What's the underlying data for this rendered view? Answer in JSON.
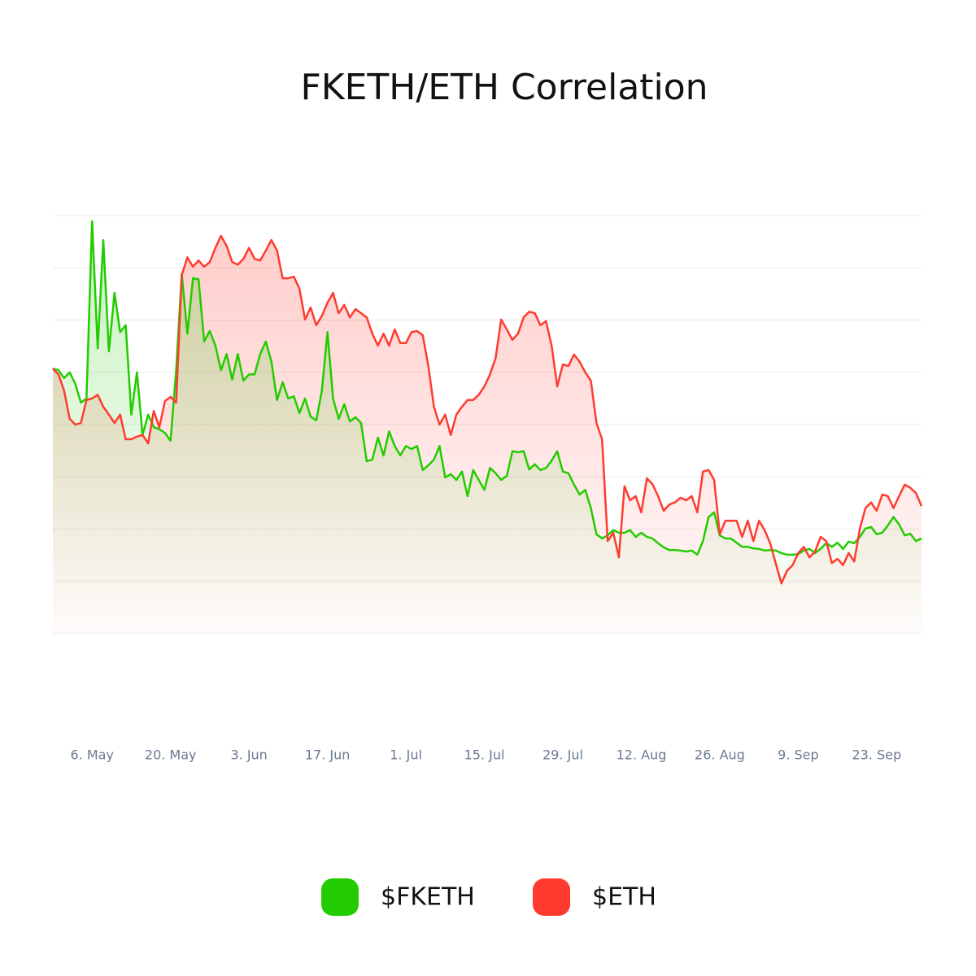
{
  "chart_data": {
    "type": "line",
    "title": "FKETH/ETH Correlation",
    "categories": [
      null,
      null,
      null,
      null,
      null,
      null,
      null,
      "6. May",
      null,
      null,
      null,
      null,
      null,
      null,
      null,
      null,
      null,
      null,
      null,
      null,
      null,
      "20. May",
      null,
      null,
      null,
      null,
      null,
      null,
      null,
      null,
      null,
      null,
      null,
      null,
      null,
      "3. Jun",
      null,
      null,
      null,
      null,
      null,
      null,
      null,
      null,
      null,
      null,
      null,
      null,
      null,
      "17. Jun",
      null,
      null,
      null,
      null,
      null,
      null,
      null,
      null,
      null,
      null,
      null,
      null,
      null,
      "1. Jul",
      null,
      null,
      null,
      null,
      null,
      null,
      null,
      null,
      null,
      null,
      null,
      null,
      null,
      "15. Jul",
      null,
      null,
      null,
      null,
      null,
      null,
      null,
      null,
      null,
      null,
      null,
      null,
      null,
      "29. Jul",
      null,
      null,
      null,
      null,
      null,
      null,
      null,
      null,
      null,
      null,
      null,
      null,
      null,
      "12. Aug",
      null,
      null,
      null,
      null,
      null,
      null,
      null,
      null,
      null,
      null,
      null,
      null,
      null,
      "26. Aug",
      null,
      null,
      null,
      null,
      null,
      null,
      null,
      null,
      null,
      null,
      null,
      null,
      null,
      "9. Sep",
      null,
      null,
      null,
      null,
      null,
      null,
      null,
      null,
      null,
      null,
      null,
      null,
      null,
      "23. Sep",
      null,
      null,
      null,
      null,
      null,
      null,
      null,
      null
    ],
    "series": [
      {
        "name": "$FKETH",
        "color": "#22cc00",
        "values": [
          5.07,
          5.04,
          4.89,
          5.0,
          4.78,
          4.42,
          4.5,
          7.89,
          5.46,
          7.53,
          5.4,
          6.52,
          5.77,
          5.9,
          4.19,
          5.0,
          3.8,
          4.19,
          3.95,
          3.91,
          3.84,
          3.69,
          5.04,
          6.88,
          5.74,
          6.8,
          6.78,
          5.59,
          5.79,
          5.51,
          5.04,
          5.35,
          4.86,
          5.35,
          4.84,
          4.96,
          4.96,
          5.35,
          5.59,
          5.2,
          4.47,
          4.81,
          4.5,
          4.54,
          4.22,
          4.5,
          4.15,
          4.08,
          4.65,
          5.77,
          4.5,
          4.11,
          4.39,
          4.06,
          4.14,
          4.03,
          3.3,
          3.33,
          3.75,
          3.41,
          3.87,
          3.59,
          3.41,
          3.59,
          3.53,
          3.59,
          3.13,
          3.22,
          3.33,
          3.59,
          2.99,
          3.05,
          2.94,
          3.1,
          2.63,
          3.13,
          2.94,
          2.75,
          3.17,
          3.07,
          2.94,
          3.02,
          3.49,
          3.47,
          3.49,
          3.14,
          3.24,
          3.13,
          3.17,
          3.31,
          3.49,
          3.1,
          3.07,
          2.85,
          2.66,
          2.75,
          2.4,
          1.9,
          1.82,
          1.88,
          1.98,
          1.93,
          1.93,
          1.98,
          1.85,
          1.93,
          1.85,
          1.82,
          1.73,
          1.65,
          1.6,
          1.6,
          1.59,
          1.57,
          1.59,
          1.51,
          1.77,
          2.23,
          2.32,
          1.88,
          1.82,
          1.82,
          1.74,
          1.66,
          1.66,
          1.63,
          1.62,
          1.59,
          1.6,
          1.59,
          1.54,
          1.51,
          1.51,
          1.52,
          1.59,
          1.62,
          1.54,
          1.62,
          1.73,
          1.66,
          1.74,
          1.62,
          1.76,
          1.73,
          1.85,
          2.01,
          2.04,
          1.9,
          1.93,
          2.07,
          2.23,
          2.09,
          1.88,
          1.91,
          1.77,
          1.82
        ]
      },
      {
        "name": "$ETH",
        "color": "#ff3b30",
        "values": [
          5.07,
          4.96,
          4.65,
          4.11,
          4.0,
          4.03,
          4.47,
          4.5,
          4.57,
          4.34,
          4.19,
          4.03,
          4.19,
          3.72,
          3.72,
          3.77,
          3.8,
          3.64,
          4.26,
          3.95,
          4.45,
          4.53,
          4.42,
          6.86,
          7.2,
          7.02,
          7.14,
          7.02,
          7.11,
          7.38,
          7.61,
          7.42,
          7.11,
          7.06,
          7.17,
          7.38,
          7.17,
          7.14,
          7.33,
          7.53,
          7.33,
          6.8,
          6.8,
          6.83,
          6.6,
          6.01,
          6.24,
          5.9,
          6.08,
          6.33,
          6.52,
          6.13,
          6.29,
          6.05,
          6.21,
          6.13,
          6.05,
          5.74,
          5.51,
          5.74,
          5.51,
          5.82,
          5.56,
          5.56,
          5.77,
          5.79,
          5.71,
          5.12,
          4.34,
          4.0,
          4.19,
          3.8,
          4.19,
          4.34,
          4.47,
          4.47,
          4.57,
          4.73,
          4.96,
          5.27,
          6.01,
          5.82,
          5.62,
          5.74,
          6.05,
          6.16,
          6.13,
          5.9,
          5.98,
          5.51,
          4.73,
          5.15,
          5.12,
          5.34,
          5.2,
          5.0,
          4.84,
          4.03,
          3.72,
          1.77,
          1.93,
          1.46,
          2.82,
          2.55,
          2.63,
          2.32,
          2.97,
          2.86,
          2.63,
          2.35,
          2.47,
          2.51,
          2.6,
          2.55,
          2.63,
          2.32,
          3.1,
          3.13,
          2.94,
          1.9,
          2.16,
          2.16,
          2.16,
          1.85,
          2.16,
          1.77,
          2.16,
          1.98,
          1.73,
          1.34,
          0.96,
          1.2,
          1.31,
          1.54,
          1.66,
          1.46,
          1.57,
          1.85,
          1.77,
          1.35,
          1.43,
          1.31,
          1.54,
          1.38,
          2.01,
          2.4,
          2.51,
          2.35,
          2.66,
          2.63,
          2.4,
          2.63,
          2.85,
          2.79,
          2.69,
          2.44
        ]
      }
    ],
    "ylim": [
      0,
      8
    ],
    "ygrid": [
      0,
      1,
      2,
      3,
      4,
      5,
      6,
      7,
      8
    ],
    "grid": true,
    "legend": "bottom"
  }
}
